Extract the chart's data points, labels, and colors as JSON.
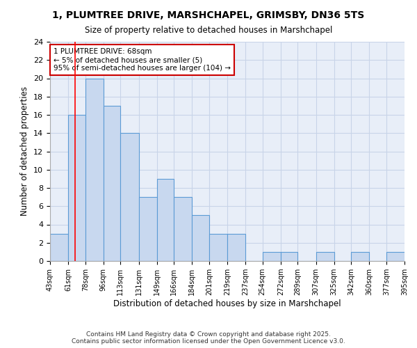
{
  "title": "1, PLUMTREE DRIVE, MARSHCHAPEL, GRIMSBY, DN36 5TS",
  "subtitle": "Size of property relative to detached houses in Marshchapel",
  "xlabel": "Distribution of detached houses by size in Marshchapel",
  "ylabel": "Number of detached properties",
  "bin_labels": [
    "43sqm",
    "61sqm",
    "78sqm",
    "96sqm",
    "113sqm",
    "131sqm",
    "149sqm",
    "166sqm",
    "184sqm",
    "201sqm",
    "219sqm",
    "237sqm",
    "254sqm",
    "272sqm",
    "289sqm",
    "307sqm",
    "325sqm",
    "342sqm",
    "360sqm",
    "377sqm",
    "395sqm"
  ],
  "bin_edges": [
    43,
    61,
    78,
    96,
    113,
    131,
    149,
    166,
    184,
    201,
    219,
    237,
    254,
    272,
    289,
    307,
    325,
    342,
    360,
    377,
    395
  ],
  "bar_heights": [
    3,
    16,
    20,
    17,
    14,
    7,
    9,
    7,
    5,
    3,
    3,
    0,
    1,
    1,
    0,
    1,
    0,
    1,
    0,
    1
  ],
  "bar_color": "#c8d8ef",
  "bar_edge_color": "#5b9bd5",
  "grid_color": "#c8d4e8",
  "bg_color": "#e8eef8",
  "red_line_x": 68,
  "annotation_text": "1 PLUMTREE DRIVE: 68sqm\n← 5% of detached houses are smaller (5)\n95% of semi-detached houses are larger (104) →",
  "annotation_box_color": "#ffffff",
  "annotation_box_edge": "#cc0000",
  "ylim": [
    0,
    24
  ],
  "yticks": [
    0,
    2,
    4,
    6,
    8,
    10,
    12,
    14,
    16,
    18,
    20,
    22,
    24
  ],
  "footer": "Contains HM Land Registry data © Crown copyright and database right 2025.\nContains public sector information licensed under the Open Government Licence v3.0."
}
